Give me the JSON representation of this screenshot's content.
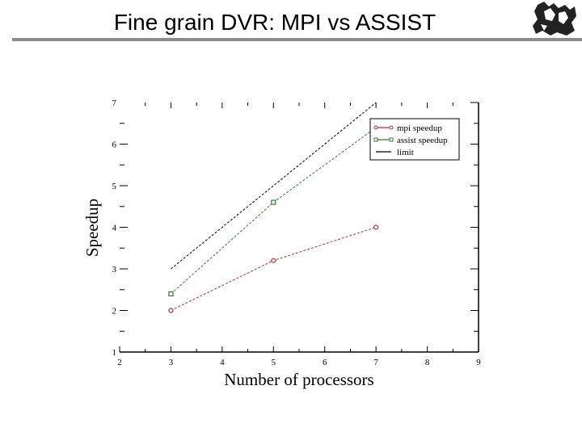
{
  "slide": {
    "title": "Fine grain DVR: MPI vs ASSIST",
    "logo_icon": "engraving-logo-icon",
    "rule_color": "#8c8c8c"
  },
  "chart_data": {
    "type": "line",
    "title": "",
    "xlabel": "Number of processors",
    "ylabel": "Speedup",
    "xlim": [
      2,
      9
    ],
    "ylim": [
      1,
      7
    ],
    "x_ticks": [
      "2",
      "3",
      "4",
      "5",
      "6",
      "7",
      "8",
      "9"
    ],
    "y_ticks": [
      "1",
      "2",
      "3",
      "4",
      "5",
      "6",
      "7"
    ],
    "grid": false,
    "legend_position": "upper right",
    "series": [
      {
        "name": "mpi speedup",
        "color": "#b0303a",
        "marker": "circle",
        "x": [
          3,
          5,
          7
        ],
        "y": [
          2.0,
          3.2,
          4.0
        ]
      },
      {
        "name": "assist speedup",
        "color": "#2e7d32",
        "marker": "square",
        "x": [
          3,
          5,
          7
        ],
        "y": [
          2.4,
          4.6,
          6.4
        ]
      },
      {
        "name": "limit",
        "color": "#000000",
        "marker": "none",
        "x": [
          3,
          7
        ],
        "y": [
          3,
          7
        ]
      }
    ]
  }
}
